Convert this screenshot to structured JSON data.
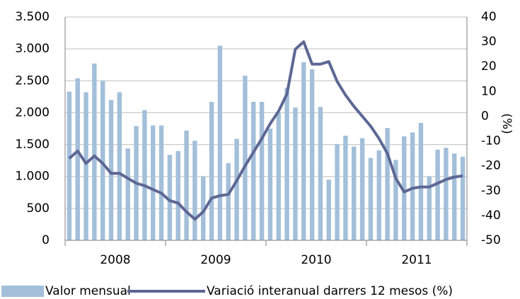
{
  "chart_data": {
    "type": "bar_line",
    "groups": [
      "2008",
      "2009",
      "2010",
      "2011"
    ],
    "y2_label": "(%)",
    "series": [
      {
        "name": "Valor mensual",
        "type": "bar",
        "color": "#a3bfd9",
        "values": [
          2330,
          2540,
          2320,
          2770,
          2500,
          2200,
          2320,
          1440,
          1790,
          2040,
          1800,
          1800,
          1340,
          1400,
          1720,
          1560,
          1000,
          2170,
          3050,
          1210,
          1590,
          2580,
          2170,
          2170,
          1750,
          2000,
          2390,
          2080,
          2790,
          2680,
          2090,
          950,
          1510,
          1640,
          1470,
          1600,
          1290,
          1410,
          1760,
          1260,
          1630,
          1690,
          1840,
          1000,
          1420,
          1450,
          1360,
          1310
        ]
      },
      {
        "name": "Variació interanual darrers 12 mesos (%)",
        "type": "line",
        "axis": "y2",
        "color": "#5d6794",
        "values": [
          -17,
          -14,
          -19,
          -16,
          -19,
          -23,
          -23,
          -25,
          -27,
          -28,
          -29.5,
          -31,
          -34,
          -35,
          -38.5,
          -41.5,
          -38.5,
          -33,
          -32,
          -31.5,
          -26,
          -20,
          -14.5,
          -9,
          -3,
          2,
          9,
          27,
          30,
          21,
          21,
          22,
          14,
          8.5,
          4,
          0,
          -4,
          -9,
          -15,
          -25,
          -30.5,
          -29,
          -28.5,
          -28.5,
          -27,
          -25.5,
          -24.5,
          -24
        ]
      }
    ],
    "ylim": [
      0,
      3500
    ],
    "yticks": [
      0,
      500,
      {
        "value": 1000,
        "label": "1.000"
      },
      {
        "value": 1500,
        "label": "1.500"
      },
      {
        "value": 2000,
        "label": "2.000"
      },
      {
        "value": 2500,
        "label": "2.500"
      },
      {
        "value": 3000,
        "label": "3.000"
      },
      {
        "value": 3500,
        "label": "3.500"
      }
    ],
    "y2lim": [
      -50,
      40
    ],
    "y2ticks": [
      -50,
      -40,
      -30,
      -20,
      -10,
      0,
      10,
      20,
      30,
      40
    ],
    "grid": true
  }
}
